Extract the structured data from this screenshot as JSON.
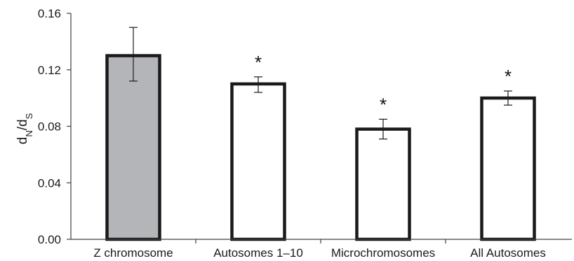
{
  "chart_data": {
    "type": "bar",
    "categories": [
      "Z chromosome",
      "Autosomes 1–10",
      "Microchromosomes",
      "All Autosomes"
    ],
    "values": [
      0.13,
      0.11,
      0.078,
      0.1
    ],
    "error_low": [
      0.112,
      0.104,
      0.071,
      0.095
    ],
    "error_high": [
      0.15,
      0.115,
      0.085,
      0.105
    ],
    "annotations": [
      "",
      "*",
      "*",
      "*"
    ],
    "bar_colors": [
      "#b3b5b8",
      "#ffffff",
      "#ffffff",
      "#ffffff"
    ],
    "bar_edge_color": "#1a1a1a",
    "ylabel": {
      "base": "d",
      "sub1": "N",
      "sep": "/d",
      "sub2": "S"
    },
    "yticks": [
      "0.00",
      "0.04",
      "0.08",
      "0.12",
      "0.16"
    ],
    "ylim": [
      0,
      0.16
    ],
    "grid": false,
    "legend": "none"
  }
}
